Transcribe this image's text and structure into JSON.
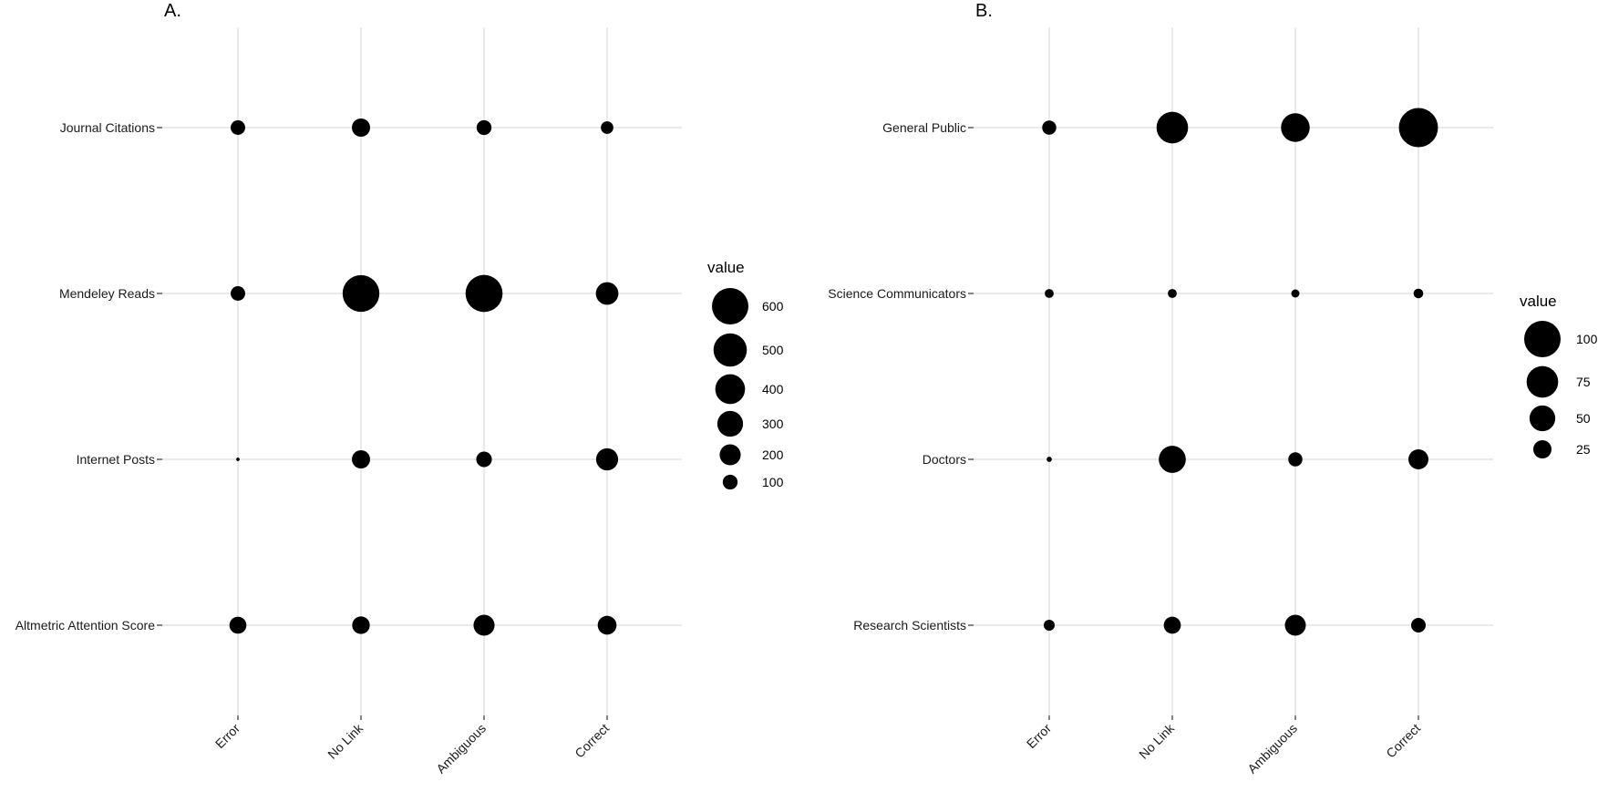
{
  "chart_data": [
    {
      "type": "scatter",
      "title": "A.",
      "categories": [
        "Error",
        "No Link",
        "Ambiguous",
        "Correct"
      ],
      "y_categories": [
        "Journal Citations",
        "Mendeley Reads",
        "Internet Posts",
        "Altmetric Attention Score"
      ],
      "size_legend_title": "value",
      "size_legend_values": [
        600,
        500,
        400,
        300,
        200,
        100
      ],
      "size_max": 600,
      "grid": true,
      "legend_position": "right",
      "series": [
        {
          "y": "Journal Citations",
          "values": [
            95,
            150,
            100,
            70
          ]
        },
        {
          "y": "Mendeley Reads",
          "values": [
            95,
            610,
            620,
            230
          ]
        },
        {
          "y": "Internet Posts",
          "values": [
            5,
            150,
            110,
            220
          ]
        },
        {
          "y": "Altmetric Attention Score",
          "values": [
            130,
            140,
            200,
            160
          ]
        }
      ]
    },
    {
      "type": "scatter",
      "title": "B.",
      "categories": [
        "Error",
        "No Link",
        "Ambiguous",
        "Correct"
      ],
      "y_categories": [
        "General Public",
        "Science Communicators",
        "Doctors",
        "Research Scientists"
      ],
      "size_legend_title": "value",
      "size_legend_values": [
        100,
        75,
        50,
        25
      ],
      "size_max": 100,
      "grid": true,
      "legend_position": "right",
      "series": [
        {
          "y": "General Public",
          "values": [
            15,
            75,
            62,
            115
          ]
        },
        {
          "y": "Science Communicators",
          "values": [
            6,
            6,
            5,
            7
          ]
        },
        {
          "y": "Doctors",
          "values": [
            2,
            55,
            15,
            30
          ]
        },
        {
          "y": "Research Scientists",
          "values": [
            9,
            22,
            33,
            16
          ]
        }
      ]
    }
  ]
}
